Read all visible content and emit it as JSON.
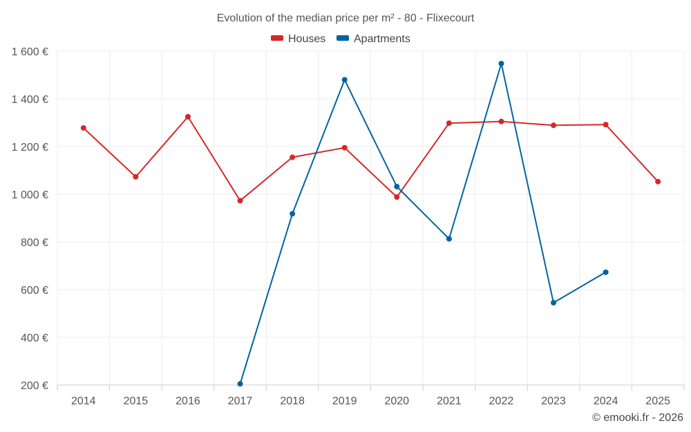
{
  "chart_data": {
    "type": "line",
    "title": "Evolution of the median price per m² - 80 - Flixecourt",
    "credit": "© emooki.fr - 2026",
    "xlabel": "",
    "ylabel": "",
    "categories": [
      "2014",
      "2015",
      "2016",
      "2017",
      "2018",
      "2019",
      "2020",
      "2021",
      "2022",
      "2023",
      "2024",
      "2025"
    ],
    "y_ticks": [
      200,
      400,
      600,
      800,
      1000,
      1200,
      1400,
      1600
    ],
    "y_tick_labels": [
      "200 €",
      "400 €",
      "600 €",
      "800 €",
      "1 000 €",
      "1 200 €",
      "1 400 €",
      "1 600 €"
    ],
    "ylim": [
      200,
      1600
    ],
    "grid": true,
    "legend_position": "top-center",
    "series": [
      {
        "name": "Houses",
        "color": "#d62728",
        "values": [
          1278,
          1073,
          1325,
          973,
          1155,
          1195,
          988,
          1298,
          1305,
          1289,
          1292,
          1053
        ]
      },
      {
        "name": "Apartments",
        "color": "#0063a0",
        "values": [
          null,
          null,
          null,
          205,
          918,
          1480,
          1032,
          813,
          1548,
          545,
          673,
          null
        ]
      }
    ]
  }
}
